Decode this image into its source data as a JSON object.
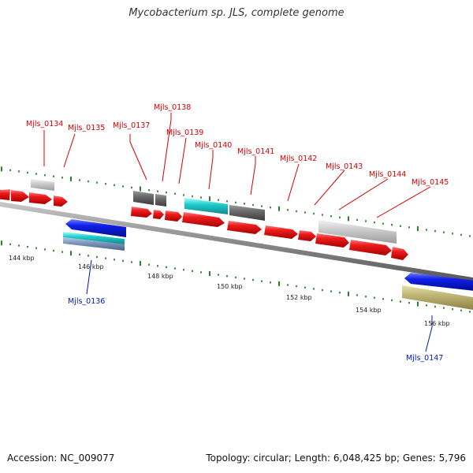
{
  "title": "Mycobacterium sp. JLS, complete genome",
  "footer": {
    "accession": "Accession: NC_009077",
    "topology": "Topology: circular; Length: 6,048,425 bp; Genes: 5,796"
  },
  "colors": {
    "forward_label": "#d40000",
    "reverse_label": "#0018b0",
    "cds": "#ee1c1c",
    "backbone": "#8a8a8a",
    "tick": "#117711"
  },
  "scale_labels": [
    "144 kbp",
    "146 kbp",
    "148 kbp",
    "150 kbp",
    "152 kbp",
    "154 kbp",
    "156 kbp"
  ],
  "gene_labels": [
    {
      "name": "Mjls_0134",
      "strand": "forward"
    },
    {
      "name": "Mjls_0135",
      "strand": "forward"
    },
    {
      "name": "Mjls_0137",
      "strand": "forward"
    },
    {
      "name": "Mjls_0138",
      "strand": "forward"
    },
    {
      "name": "Mjls_0139",
      "strand": "forward"
    },
    {
      "name": "Mjls_0140",
      "strand": "forward"
    },
    {
      "name": "Mjls_0141",
      "strand": "forward"
    },
    {
      "name": "Mjls_0142",
      "strand": "forward"
    },
    {
      "name": "Mjls_0143",
      "strand": "forward"
    },
    {
      "name": "Mjls_0144",
      "strand": "forward"
    },
    {
      "name": "Mjls_0145",
      "strand": "forward"
    },
    {
      "name": "Mjls_0136",
      "strand": "reverse"
    },
    {
      "name": "Mjls_0147",
      "strand": "reverse"
    }
  ]
}
